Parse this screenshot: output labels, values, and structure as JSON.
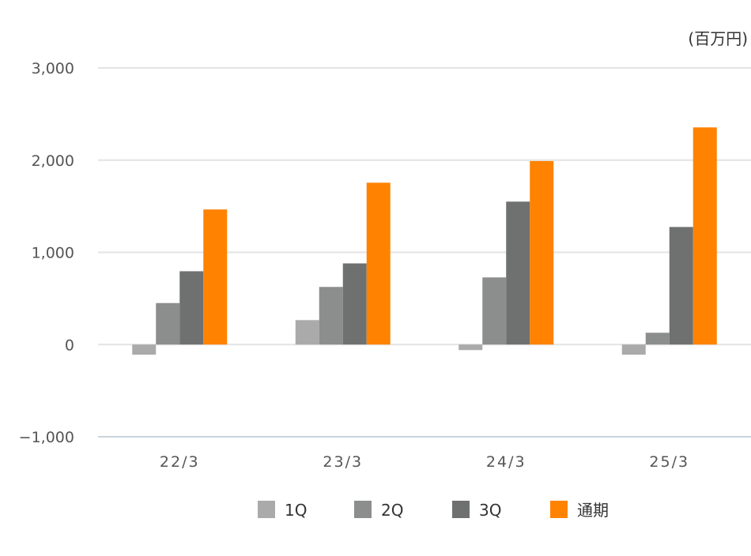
{
  "chart_data": {
    "type": "bar",
    "unit_label": "(百万円)",
    "categories": [
      "22/3",
      "23/3",
      "24/3",
      "25/3"
    ],
    "series": [
      {
        "name": "1Q",
        "color": "#aaaaaa",
        "values": [
          -110,
          265,
          -60,
          -110
        ]
      },
      {
        "name": "2Q",
        "color": "#8c8e8d",
        "values": [
          450,
          625,
          728,
          128
        ]
      },
      {
        "name": "3Q",
        "color": "#6f7170",
        "values": [
          795,
          880,
          1550,
          1275
        ]
      },
      {
        "name": "通期",
        "color": "#ff8200",
        "values": [
          1465,
          1755,
          1990,
          2355
        ]
      }
    ],
    "yticks": [
      "3,000",
      "2,000",
      "1,000",
      "0",
      "−1,000"
    ],
    "ytick_values": [
      3000,
      2000,
      1000,
      0,
      -1000
    ],
    "ylim": [
      -1000,
      3000
    ],
    "grid": true,
    "legend": "bottom"
  }
}
